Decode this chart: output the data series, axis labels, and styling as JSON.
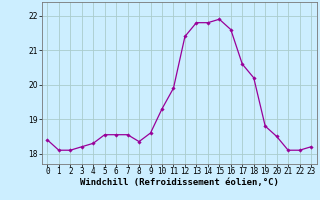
{
  "x": [
    0,
    1,
    2,
    3,
    4,
    5,
    6,
    7,
    8,
    9,
    10,
    11,
    12,
    13,
    14,
    15,
    16,
    17,
    18,
    19,
    20,
    21,
    22,
    23
  ],
  "y": [
    18.4,
    18.1,
    18.1,
    18.2,
    18.3,
    18.55,
    18.55,
    18.55,
    18.35,
    18.6,
    19.3,
    19.9,
    21.4,
    21.8,
    21.8,
    21.9,
    21.6,
    20.6,
    20.2,
    18.8,
    18.5,
    18.1,
    18.1,
    18.2
  ],
  "line_color": "#990099",
  "marker": "D",
  "marker_size": 1.8,
  "linewidth": 0.9,
  "bg_color": "#cceeff",
  "grid_color": "#aacccc",
  "xlabel": "Windchill (Refroidissement éolien,°C)",
  "xlabel_fontsize": 6.5,
  "tick_fontsize": 5.5,
  "ylim": [
    17.7,
    22.4
  ],
  "yticks": [
    18,
    19,
    20,
    21,
    22
  ],
  "xtick_labels": [
    "0",
    "1",
    "2",
    "3",
    "4",
    "5",
    "6",
    "7",
    "8",
    "9",
    "10",
    "11",
    "12",
    "13",
    "14",
    "15",
    "16",
    "17",
    "18",
    "19",
    "20",
    "21",
    "22",
    "23"
  ]
}
